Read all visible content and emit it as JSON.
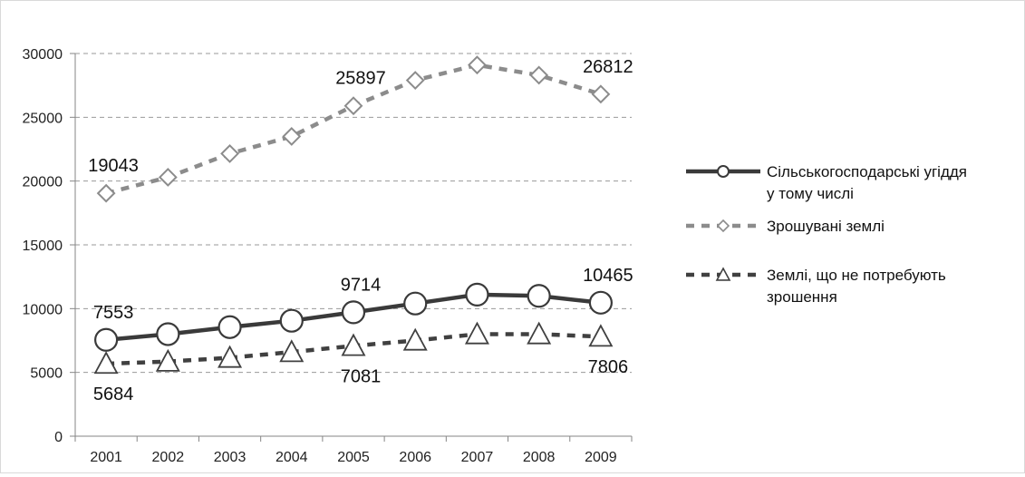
{
  "chart_data": {
    "type": "line",
    "title": "",
    "xlabel": "",
    "ylabel": "",
    "ylim": [
      0,
      30000
    ],
    "yticks": [
      0,
      5000,
      10000,
      15000,
      20000,
      25000,
      30000
    ],
    "grid": "horizontal-dashed",
    "legend_position": "right",
    "categories": [
      "2001",
      "2002",
      "2003",
      "2004",
      "2005",
      "2006",
      "2007",
      "2008",
      "2009"
    ],
    "series": [
      {
        "name": "Сільськогосподарські угіддя у тому числі",
        "legend_lines": [
          "Сільськогосподарські угіддя",
          "у тому числі"
        ],
        "values": [
          7553,
          8000,
          8550,
          9050,
          9714,
          10400,
          11100,
          11000,
          10465
        ],
        "color": "#3a3a3a",
        "line_style": "solid",
        "marker": "circle",
        "labels": [
          {
            "index": 0,
            "text": "7553",
            "position": "above"
          },
          {
            "index": 4,
            "text": "9714",
            "position": "above"
          },
          {
            "index": 8,
            "text": "10465",
            "position": "above"
          }
        ]
      },
      {
        "name": "Зрошувані землі",
        "legend_lines": [
          "Зрошувані землі"
        ],
        "values": [
          19043,
          20300,
          22150,
          23500,
          25897,
          27900,
          29100,
          28300,
          26812
        ],
        "color": "#8c8c8c",
        "line_style": "dashed",
        "marker": "diamond",
        "labels": [
          {
            "index": 0,
            "text": "19043",
            "position": "above"
          },
          {
            "index": 4,
            "text": "25897",
            "position": "above"
          },
          {
            "index": 8,
            "text": "26812",
            "position": "above"
          }
        ]
      },
      {
        "name": "Землі, що не потребують зрошення",
        "legend_lines": [
          "Землі, що не потребують",
          "зрошення"
        ],
        "values": [
          5684,
          5850,
          6150,
          6600,
          7081,
          7500,
          8000,
          8000,
          7806
        ],
        "color": "#404040",
        "line_style": "dashed",
        "marker": "triangle",
        "labels": [
          {
            "index": 0,
            "text": "5684",
            "position": "below"
          },
          {
            "index": 4,
            "text": "7081",
            "position": "below"
          },
          {
            "index": 8,
            "text": "7806",
            "position": "below"
          }
        ]
      }
    ]
  }
}
